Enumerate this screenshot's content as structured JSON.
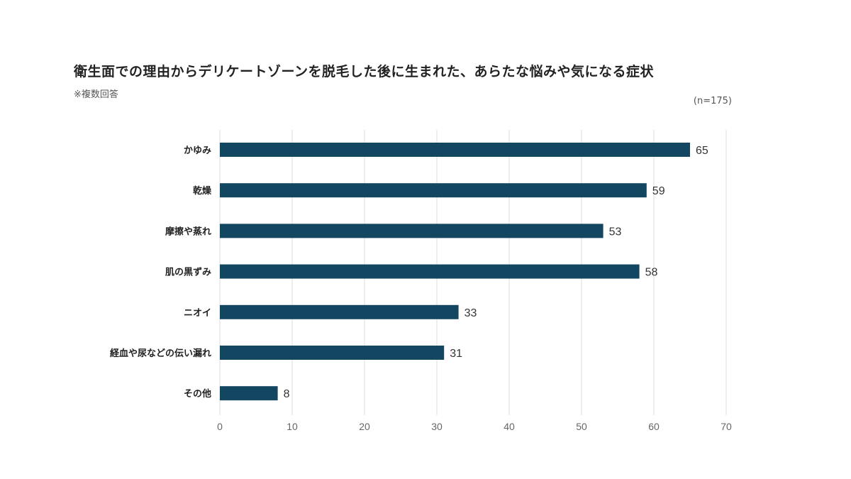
{
  "chart_data": {
    "type": "bar",
    "orientation": "horizontal",
    "title": "衛生面での理由からデリケートゾーンを脱毛した後に生まれた、あらたな悩みや気になる症状",
    "subtitle": "※複数回答",
    "note": "(n=175)",
    "categories": [
      "かゆみ",
      "乾燥",
      "摩擦や蒸れ",
      "肌の黒ずみ",
      "ニオイ",
      "経血や尿などの伝い漏れ",
      "その他"
    ],
    "values": [
      65,
      59,
      53,
      58,
      33,
      31,
      8
    ],
    "xlim": [
      0,
      70
    ],
    "xticks": [
      0,
      10,
      20,
      30,
      40,
      50,
      60,
      70
    ],
    "grid": true,
    "bar_color": "#134660",
    "grid_color": "#dddddd"
  }
}
